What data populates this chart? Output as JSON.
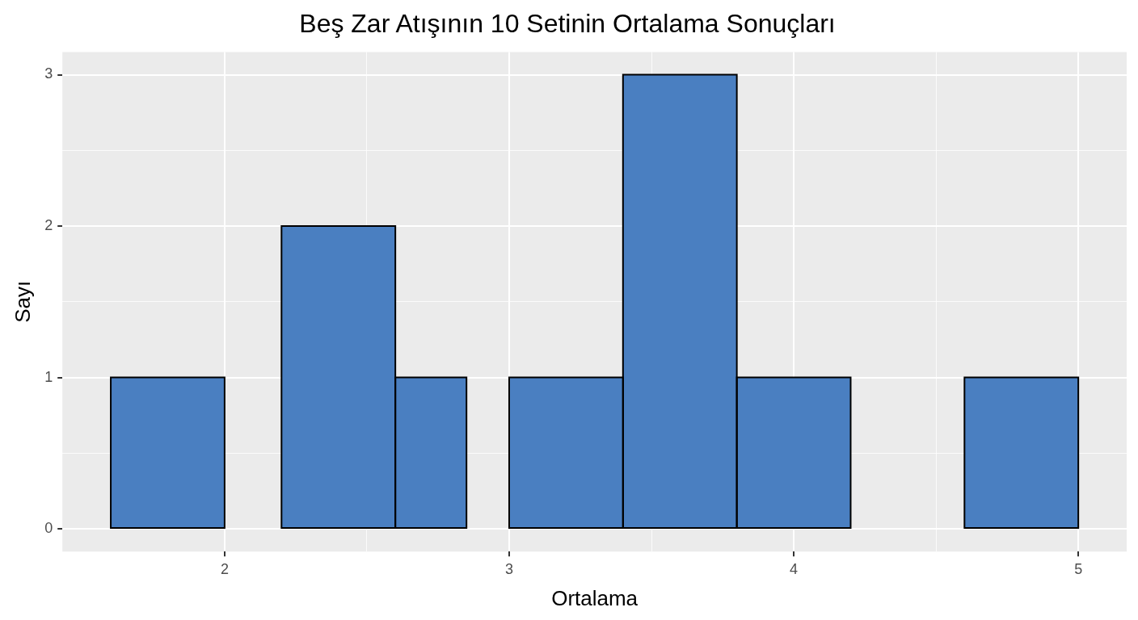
{
  "chart_data": {
    "type": "histogram",
    "title": "Beş Zar Atışının 10 Setinin Ortalama Sonuçları",
    "xlabel": "Ortalama",
    "ylabel": "Sayı",
    "bins": [
      1.6,
      2.0,
      2.2,
      2.6,
      2.85,
      3.0,
      3.4,
      3.8,
      4.2,
      4.6,
      5.0
    ],
    "values": [
      1,
      0,
      2,
      1,
      0,
      1,
      3,
      1,
      0,
      1
    ],
    "color": "#4a7fc1",
    "xlim": [
      1.43,
      5.17
    ],
    "xticks": [
      2,
      {
        "value": 2.5,
        "label": null
      },
      3,
      {
        "value": 3.5,
        "label": null
      },
      4,
      {
        "value": 4.5,
        "label": null
      },
      5
    ],
    "ylim": [
      -0.15,
      3.15
    ],
    "yticks": [
      0,
      {
        "value": 0.5,
        "label": null
      },
      1,
      {
        "value": 1.5,
        "label": null
      },
      2,
      {
        "value": 2.5,
        "label": null
      },
      3
    ],
    "grid": true,
    "legend": false
  }
}
